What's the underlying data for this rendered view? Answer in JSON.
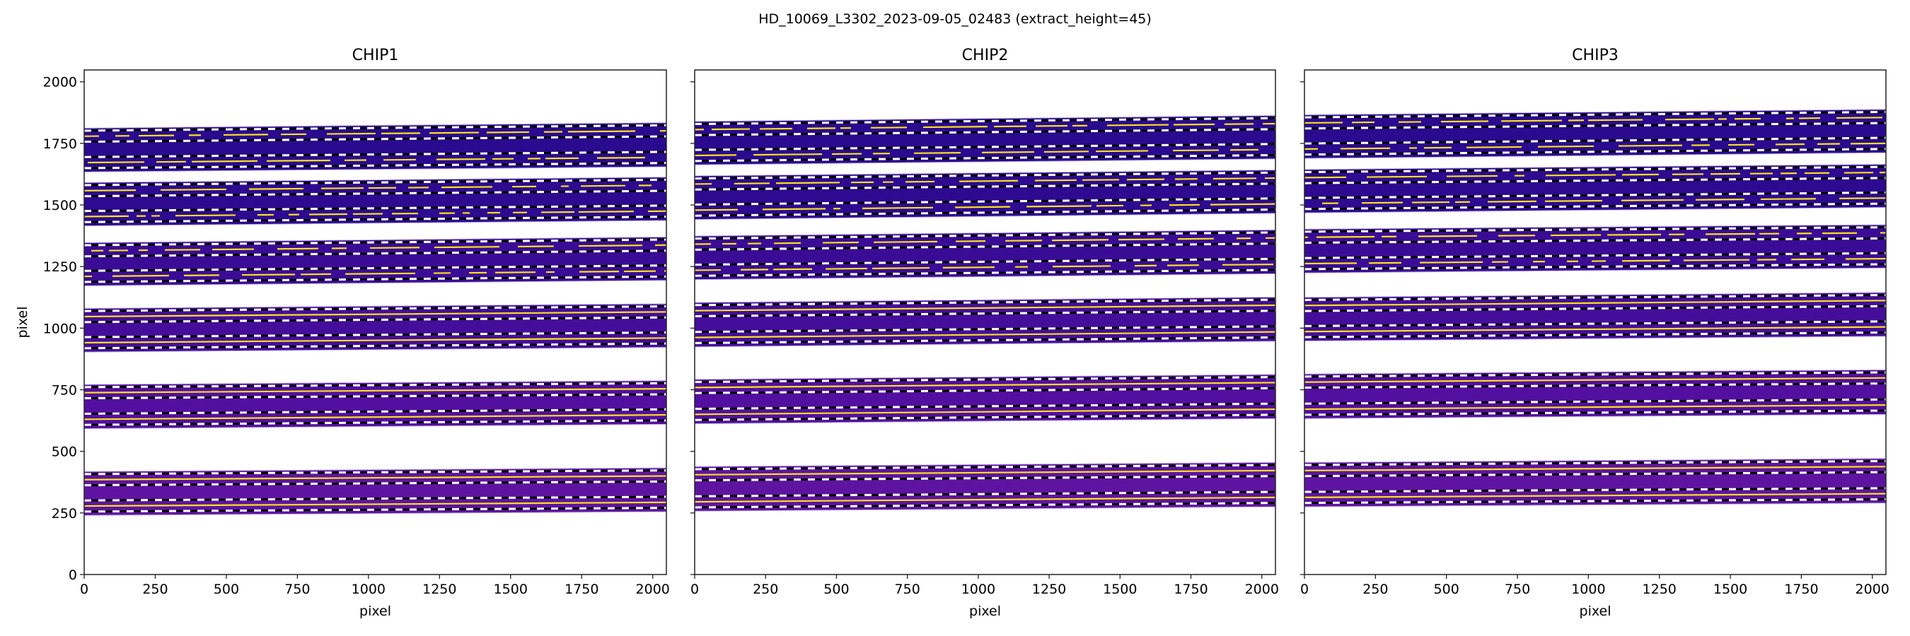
{
  "chart_data": {
    "type": "heatmap",
    "title": "HD_10069_L3302_2023-09-05_02483  (extract_height=45)",
    "extract_height": 45,
    "xlim": [
      0,
      2048
    ],
    "ylim": [
      0,
      2048
    ],
    "xticks": [
      "0",
      "250",
      "500",
      "750",
      "1000",
      "1250",
      "1500",
      "1750",
      "2000"
    ],
    "yticks": [
      "0",
      "250",
      "500",
      "750",
      "1000",
      "1250",
      "1500",
      "1750",
      "2000"
    ],
    "xtick_values": [
      0,
      250,
      500,
      750,
      1000,
      1250,
      1500,
      1750,
      2000
    ],
    "ytick_values": [
      0,
      250,
      500,
      750,
      1000,
      1250,
      1500,
      1750,
      2000
    ],
    "colormap": "plasma",
    "band_colors": [
      "#2a0a8e",
      "#2d0a90",
      "#3a0c96",
      "#440e9b",
      "#530fa0",
      "#5e14a0"
    ],
    "trace_color": "#f8e21c",
    "panels": [
      {
        "title": "CHIP1",
        "xlabel": "pixel",
        "ylabel": "pixel",
        "orders": [
          {
            "traces_x0": [
              1779,
              1672
            ],
            "traces_x2048": [
              1801,
              1693
            ],
            "lines": "emission"
          },
          {
            "traces_x0": [
              1558,
              1453
            ],
            "traces_x2048": [
              1580,
              1475
            ],
            "lines": "emission"
          },
          {
            "traces_x0": [
              1314,
              1210
            ],
            "traces_x2048": [
              1337,
              1232
            ],
            "lines": "emission"
          },
          {
            "traces_x0": [
              1047,
              941
            ],
            "traces_x2048": [
              1066,
              960
            ],
            "lines": "continuous"
          },
          {
            "traces_x0": [
              738,
              630
            ],
            "traces_x2048": [
              754,
              648
            ],
            "lines": "continuous"
          },
          {
            "traces_x0": [
              385,
              278
            ],
            "traces_x2048": [
              400,
              293
            ],
            "lines": "continuous"
          }
        ]
      },
      {
        "title": "CHIP2",
        "xlabel": "pixel",
        "orders": [
          {
            "traces_x0": [
              1806,
              1701
            ],
            "traces_x2048": [
              1830,
              1725
            ],
            "lines": "emission"
          },
          {
            "traces_x0": [
              1585,
              1479
            ],
            "traces_x2048": [
              1609,
              1504
            ],
            "lines": "emission"
          },
          {
            "traces_x0": [
              1341,
              1235
            ],
            "traces_x2048": [
              1366,
              1259
            ],
            "lines": "emission"
          },
          {
            "traces_x0": [
              1071,
              962
            ],
            "traces_x2048": [
              1093,
              985
            ],
            "lines": "continuous"
          },
          {
            "traces_x0": [
              759,
              650
            ],
            "traces_x2048": [
              779,
              671
            ],
            "lines": "continuous"
          },
          {
            "traces_x0": [
              405,
              295
            ],
            "traces_x2048": [
              422,
              313
            ],
            "lines": "continuous"
          }
        ]
      },
      {
        "title": "CHIP3",
        "xlabel": "pixel",
        "orders": [
          {
            "traces_x0": [
              1833,
              1727
            ],
            "traces_x2048": [
              1855,
              1750
            ],
            "lines": "emission"
          },
          {
            "traces_x0": [
              1611,
              1506
            ],
            "traces_x2048": [
              1632,
              1528
            ],
            "lines": "emission"
          },
          {
            "traces_x0": [
              1369,
              1262
            ],
            "traces_x2048": [
              1387,
              1282
            ],
            "lines": "emission"
          },
          {
            "traces_x0": [
              1092,
              986
            ],
            "traces_x2048": [
              1112,
              1005
            ],
            "lines": "continuous"
          },
          {
            "traces_x0": [
              781,
              671
            ],
            "traces_x2048": [
              798,
              688
            ],
            "lines": "continuous"
          },
          {
            "traces_x0": [
              422,
              313
            ],
            "traces_x2048": [
              438,
              328
            ],
            "lines": "continuous"
          }
        ]
      }
    ]
  }
}
